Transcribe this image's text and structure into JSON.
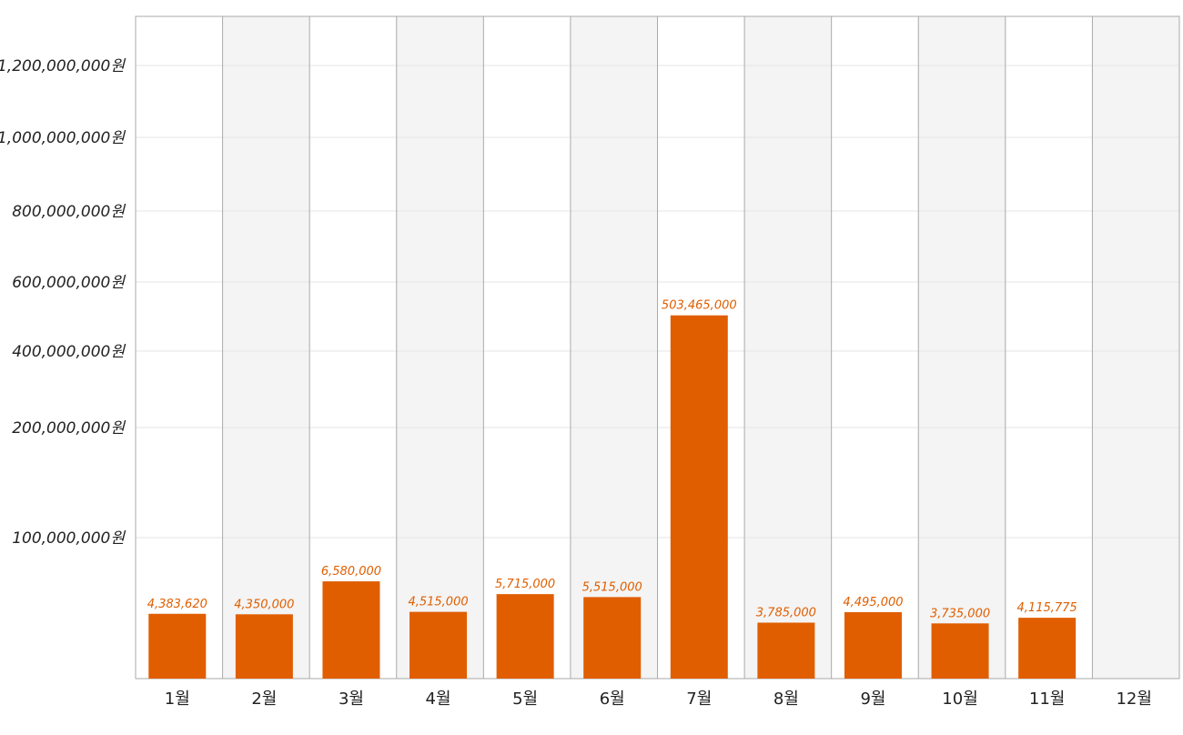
{
  "chart_data": {
    "type": "bar",
    "categories": [
      "1월",
      "2월",
      "3월",
      "4월",
      "5월",
      "6월",
      "7월",
      "8월",
      "9월",
      "10월",
      "11월",
      "12월"
    ],
    "values": [
      4383620,
      4350000,
      6580000,
      4515000,
      5715000,
      5515000,
      503465000,
      3785000,
      4495000,
      3735000,
      4115775,
      null
    ],
    "value_labels": [
      "4,383,620",
      "4,350,000",
      "6,580,000",
      "4,515,000",
      "5,715,000",
      "5,515,000",
      "503,465,000",
      "3,785,000",
      "4,495,000",
      "3,735,000",
      "4,115,775",
      ""
    ],
    "y_ticks": [
      100000000,
      200000000,
      400000000,
      600000000,
      800000000,
      1000000000,
      1200000000
    ],
    "y_tick_labels": [
      "100,000,000원",
      "200,000,000원",
      "400,000,000원",
      "600,000,000원",
      "800,000,000원",
      "1,000,000,000원",
      "1,200,000,000원"
    ],
    "yscale": "nonlinear",
    "ylim": [
      0,
      1350000000
    ],
    "grid": true,
    "title": "",
    "xlabel": "",
    "ylabel": "",
    "colors": {
      "bar": "#e05e00",
      "data_label": "#e05e00",
      "band_alt": "#f4f4f4",
      "band_base": "#ffffff",
      "grid": "#e6e6e6",
      "frame": "#aaaaaa"
    }
  }
}
